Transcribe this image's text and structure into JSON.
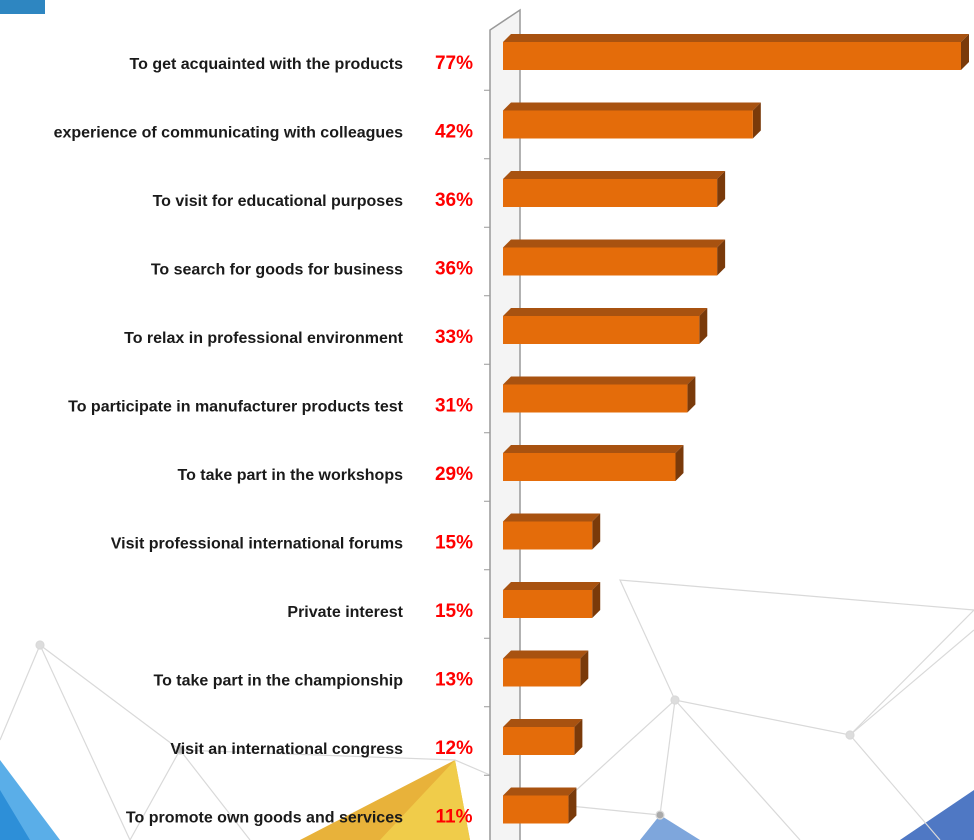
{
  "chart_data": {
    "type": "bar",
    "orientation": "horizontal",
    "categories": [
      "To get acquainted with the products",
      "experience of communicating with colleagues",
      "To visit for educational purposes",
      "To search for goods for business",
      "To relax in professional environment",
      "To participate in manufacturer products test",
      "To take part in the workshops",
      "Visit professional international forums",
      "Private interest",
      "To take part in the championship",
      "Visit an international congress",
      "To promote own goods and services"
    ],
    "values": [
      77,
      42,
      36,
      36,
      33,
      31,
      29,
      15,
      15,
      13,
      12,
      11
    ],
    "value_labels": [
      "77%",
      "42%",
      "36%",
      "36%",
      "33%",
      "31%",
      "29%",
      "15%",
      "15%",
      "13%",
      "12%",
      "11%"
    ],
    "color": "#e46c0a"
  }
}
